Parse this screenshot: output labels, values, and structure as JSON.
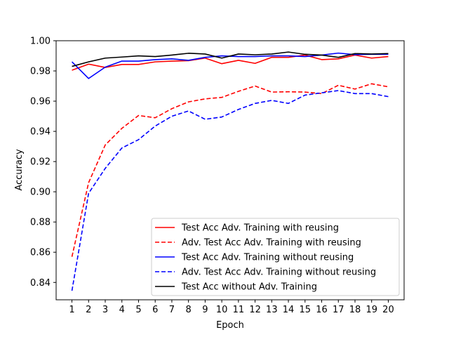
{
  "chart_data": {
    "type": "line",
    "title": "",
    "xlabel": "Epoch",
    "ylabel": "Accuracy",
    "xlim": [
      0.05,
      20.95
    ],
    "ylim": [
      0.8285,
      1.0
    ],
    "x": [
      1,
      2,
      3,
      4,
      5,
      6,
      7,
      8,
      9,
      10,
      11,
      12,
      13,
      14,
      15,
      16,
      17,
      18,
      19,
      20
    ],
    "x_tick_labels": [
      "1",
      "2",
      "3",
      "4",
      "5",
      "6",
      "7",
      "8",
      "9",
      "10",
      "11",
      "12",
      "13",
      "14",
      "15",
      "16",
      "17",
      "18",
      "19",
      "20"
    ],
    "y_ticks": [
      0.84,
      0.86,
      0.88,
      0.9,
      0.92,
      0.94,
      0.96,
      0.98,
      1.0
    ],
    "y_tick_labels": [
      "0.84",
      "0.86",
      "0.88",
      "0.90",
      "0.92",
      "0.94",
      "0.96",
      "0.98",
      "1.00"
    ],
    "legend_position": "lower-right",
    "grid": false,
    "series": [
      {
        "name": "Test Acc Adv. Training with reusing",
        "color": "#ff0000",
        "style": "solid",
        "values": [
          0.9805,
          0.9845,
          0.9823,
          0.9843,
          0.9843,
          0.986,
          0.9865,
          0.9868,
          0.9885,
          0.9848,
          0.987,
          0.985,
          0.989,
          0.989,
          0.9905,
          0.9875,
          0.988,
          0.9905,
          0.9885,
          0.9895
        ]
      },
      {
        "name": "Adv. Test Acc Adv. Training with reusing",
        "color": "#ff0000",
        "style": "dashed",
        "values": [
          0.857,
          0.906,
          0.931,
          0.942,
          0.9505,
          0.949,
          0.955,
          0.9595,
          0.9615,
          0.9625,
          0.9665,
          0.97,
          0.966,
          0.9662,
          0.966,
          0.965,
          0.9705,
          0.968,
          0.9715,
          0.9695
        ]
      },
      {
        "name": "Test Acc Adv. Training without reusing",
        "color": "#0000ff",
        "style": "solid",
        "values": [
          0.986,
          0.975,
          0.9825,
          0.9865,
          0.9865,
          0.9875,
          0.988,
          0.987,
          0.989,
          0.99,
          0.9895,
          0.9895,
          0.99,
          0.99,
          0.9895,
          0.9905,
          0.9918,
          0.9908,
          0.991,
          0.991
        ]
      },
      {
        "name": "Adv. Test Acc Adv. Training without reusing",
        "color": "#0000ff",
        "style": "dashed",
        "values": [
          0.8345,
          0.899,
          0.9155,
          0.929,
          0.9345,
          0.9435,
          0.95,
          0.9535,
          0.948,
          0.9495,
          0.9545,
          0.9585,
          0.9605,
          0.9585,
          0.964,
          0.9655,
          0.967,
          0.965,
          0.965,
          0.963
        ]
      },
      {
        "name": "Test Acc without Adv. Training",
        "color": "#000000",
        "style": "solid",
        "values": [
          0.983,
          0.986,
          0.9885,
          0.9892,
          0.99,
          0.9895,
          0.9905,
          0.9917,
          0.9912,
          0.9885,
          0.9912,
          0.9907,
          0.9912,
          0.9925,
          0.991,
          0.9905,
          0.989,
          0.9915,
          0.9912,
          0.9915
        ]
      }
    ]
  }
}
